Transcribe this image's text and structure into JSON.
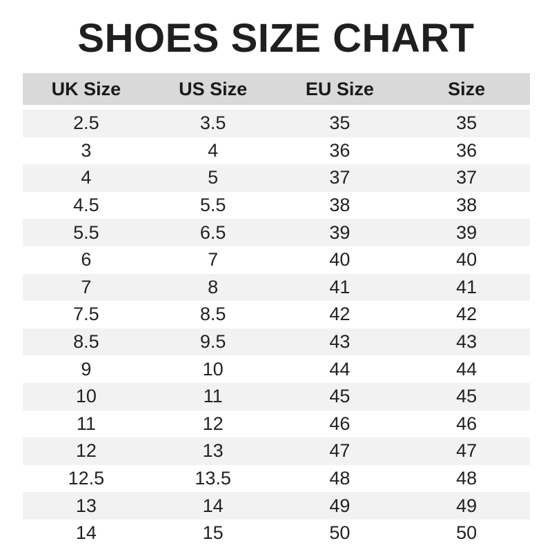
{
  "title": "SHOES SIZE CHART",
  "headers": [
    "UK Size",
    "US Size",
    "EU Size",
    "Size"
  ],
  "rows": [
    [
      "2.5",
      "3.5",
      "35",
      "35"
    ],
    [
      "3",
      "4",
      "36",
      "36"
    ],
    [
      "4",
      "5",
      "37",
      "37"
    ],
    [
      "4.5",
      "5.5",
      "38",
      "38"
    ],
    [
      "5.5",
      "6.5",
      "39",
      "39"
    ],
    [
      "6",
      "7",
      "40",
      "40"
    ],
    [
      "7",
      "8",
      "41",
      "41"
    ],
    [
      "7.5",
      "8.5",
      "42",
      "42"
    ],
    [
      "8.5",
      "9.5",
      "43",
      "43"
    ],
    [
      "9",
      "10",
      "44",
      "44"
    ],
    [
      "10",
      "11",
      "45",
      "45"
    ],
    [
      "11",
      "12",
      "46",
      "46"
    ],
    [
      "12",
      "13",
      "47",
      "47"
    ],
    [
      "12.5",
      "13.5",
      "48",
      "48"
    ],
    [
      "13",
      "14",
      "49",
      "49"
    ],
    [
      "14",
      "15",
      "50",
      "50"
    ]
  ],
  "colors": {
    "header_bg": "#d9d9d9",
    "alt_row_bg": "#f2f2f2"
  }
}
